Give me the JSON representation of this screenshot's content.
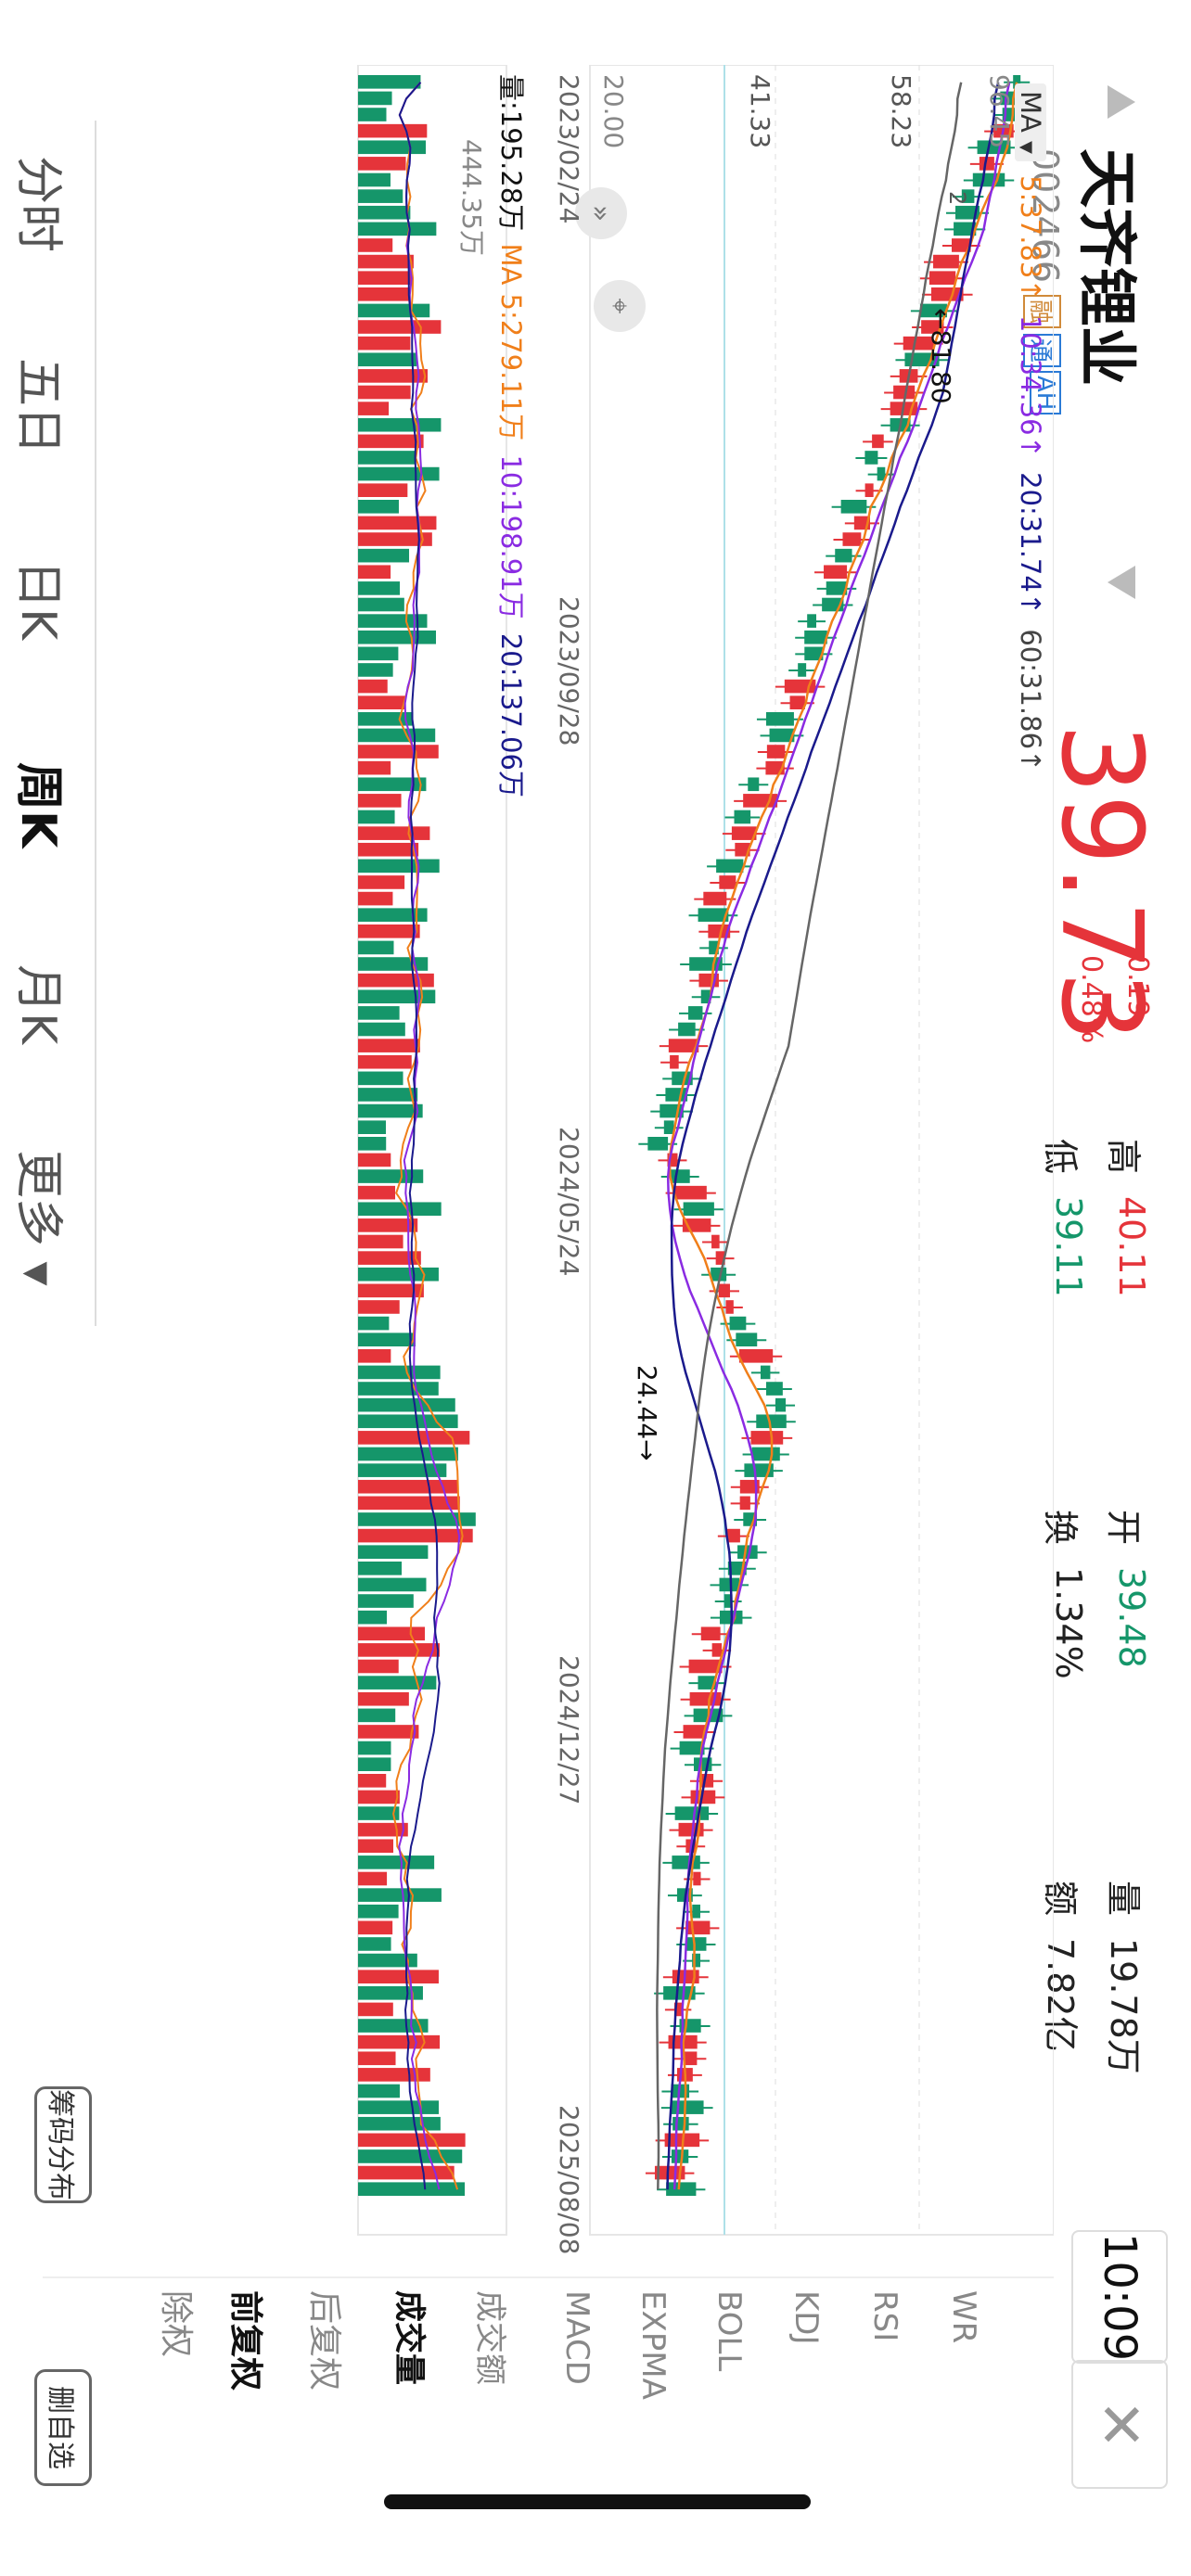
{
  "header": {
    "name": "天齐锂业",
    "code": "002466",
    "tags": [
      "融",
      "通",
      "AH"
    ],
    "price": "39.73",
    "change": "0.19",
    "change_pct": "0.48%",
    "high_label": "高",
    "high_value": "40.11",
    "low_label": "低",
    "low_value": "39.11",
    "open_label": "开",
    "open_value": "39.48",
    "turnover_label": "换",
    "turnover_value": "1.34%",
    "vol_label": "量",
    "vol_value": "19.78万",
    "amount_label": "额",
    "amount_value": "7.82亿",
    "time": "10:09"
  },
  "ma_legend": {
    "selector": "MA",
    "ma5": "5:37.83↑",
    "ma10": "10:34.36↑",
    "ma20": "20:31.74↑",
    "ma60": "60:31.86↑"
  },
  "price_axis": [
    "96.45",
    "58.23",
    "41.33",
    "20.00"
  ],
  "date_axis": [
    "2023/02/24",
    "2023/09/28",
    "2024/05/24",
    "2024/12/27",
    "2025/08/08"
  ],
  "annotations": {
    "high": "←81.80",
    "low": "24.44→",
    "partial": "2"
  },
  "volume_legend": {
    "vol": "量:195.28万",
    "ma_prefix": "MA",
    "ma5": "5:279.11万",
    "ma10": "10:198.91万",
    "ma20": "20:137.06万"
  },
  "volume_max": "444.35万",
  "right_panel": {
    "adjust": [
      "除权",
      "前复权",
      "后复权"
    ],
    "indicators": [
      "成交量",
      "成交额",
      "MACD",
      "EXPMA",
      "BOLL",
      "KDJ",
      "RSI",
      "WR"
    ]
  },
  "bottom_tabs": [
    "分时",
    "五日",
    "日K",
    "周K",
    "月K",
    "更多 ▾"
  ],
  "buttons": {
    "chip": "筹码分布",
    "delete": "删自选"
  },
  "colors": {
    "up": "#e5343a",
    "down": "#15966a",
    "ma5": "#f07f1a",
    "ma10": "#8a2be2",
    "ma20": "#1a1a8c",
    "ma60": "#666666"
  }
}
